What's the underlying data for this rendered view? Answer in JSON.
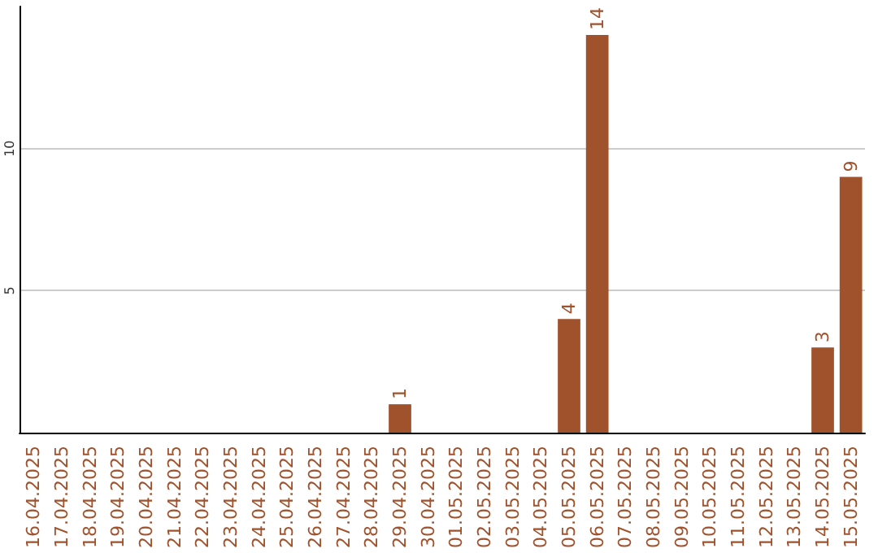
{
  "chart_data": {
    "type": "bar",
    "categories": [
      "16.04.2025",
      "17.04.2025",
      "18.04.2025",
      "19.04.2025",
      "20.04.2025",
      "21.04.2025",
      "22.04.2025",
      "23.04.2025",
      "24.04.2025",
      "25.04.2025",
      "26.04.2025",
      "27.04.2025",
      "28.04.2025",
      "29.04.2025",
      "30.04.2025",
      "01.05.2025",
      "02.05.2025",
      "03.05.2025",
      "04.05.2025",
      "05.05.2025",
      "06.05.2025",
      "07.05.2025",
      "08.05.2025",
      "09.05.2025",
      "10.05.2025",
      "11.05.2025",
      "12.05.2025",
      "13.05.2025",
      "14.05.2025",
      "15.05.2025"
    ],
    "values": [
      0,
      0,
      0,
      0,
      0,
      0,
      0,
      0,
      0,
      0,
      0,
      0,
      0,
      1,
      0,
      0,
      0,
      0,
      0,
      4,
      14,
      0,
      0,
      0,
      0,
      0,
      0,
      0,
      3,
      9
    ],
    "value_labels": [
      null,
      null,
      null,
      null,
      null,
      null,
      null,
      null,
      null,
      null,
      null,
      null,
      null,
      "1",
      null,
      null,
      null,
      null,
      null,
      "4",
      "14",
      null,
      null,
      null,
      null,
      null,
      null,
      null,
      "3",
      "9"
    ],
    "color": "#a0522d",
    "ylim": [
      0,
      15
    ],
    "yticks": [
      5,
      10
    ],
    "grid": "y"
  }
}
